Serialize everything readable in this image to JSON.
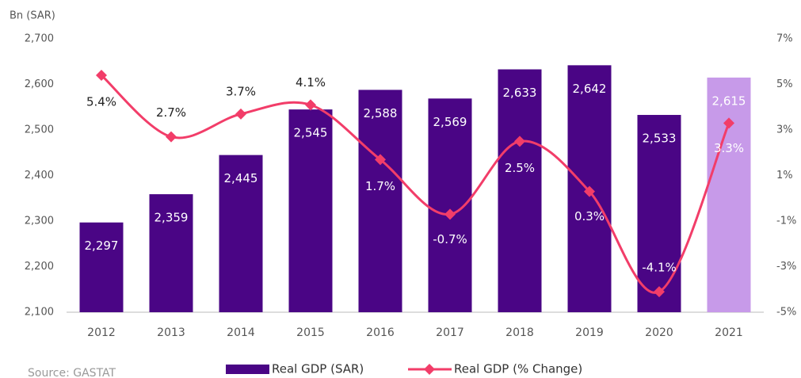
{
  "chart_data": {
    "type": "bar-line",
    "y_label": "Bn  (SAR)",
    "source": "Source: GASTAT",
    "categories": [
      "2012",
      "2013",
      "2014",
      "2015",
      "2016",
      "2017",
      "2018",
      "2019",
      "2020",
      "2021"
    ],
    "series": [
      {
        "name": "Real GDP (SAR)",
        "type": "bar",
        "color": "#4a0585",
        "colors": [
          "#4a0585",
          "#4a0585",
          "#4a0585",
          "#4a0585",
          "#4a0585",
          "#4a0585",
          "#4a0585",
          "#4a0585",
          "#4a0585",
          "#c79ae9"
        ],
        "values": [
          2297,
          2359,
          2445,
          2545,
          2588,
          2569,
          2633,
          2642,
          2533,
          2615
        ],
        "value_labels": [
          "2,297",
          "2,359",
          "2,445",
          "2,545",
          "2,588",
          "2,569",
          "2,633",
          "2,642",
          "2,533",
          "2,615"
        ]
      },
      {
        "name": "Real GDP (% Change)",
        "type": "line",
        "axis": "y2",
        "color": "#f23d69",
        "values": [
          5.4,
          2.7,
          3.7,
          4.1,
          1.7,
          -0.7,
          2.5,
          0.3,
          -4.1,
          3.3
        ],
        "value_labels": [
          "5.4%",
          "2.7%",
          "3.7%",
          "4.1%",
          "1.7%",
          "-0.7%",
          "2.5%",
          "0.3%",
          "-4.1%",
          "3.3%"
        ]
      }
    ],
    "ylim": [
      2100,
      2700
    ],
    "yticks": [
      {
        "value": 2100,
        "label": "2,100"
      },
      {
        "value": 2200,
        "label": "2,200"
      },
      {
        "value": 2300,
        "label": "2,300"
      },
      {
        "value": 2400,
        "label": "2,400"
      },
      {
        "value": 2500,
        "label": "2,500"
      },
      {
        "value": 2600,
        "label": "2,600"
      },
      {
        "value": 2700,
        "label": "2,700"
      }
    ],
    "y2lim": [
      -5,
      7
    ],
    "y2ticks": [
      {
        "value": -5,
        "label": "-5%"
      },
      {
        "value": -3,
        "label": "-3%"
      },
      {
        "value": -1,
        "label": "-1%"
      },
      {
        "value": 1,
        "label": "1%"
      },
      {
        "value": 3,
        "label": "3%"
      },
      {
        "value": 5,
        "label": "5%"
      },
      {
        "value": 7,
        "label": "7%"
      }
    ],
    "grid": false
  }
}
